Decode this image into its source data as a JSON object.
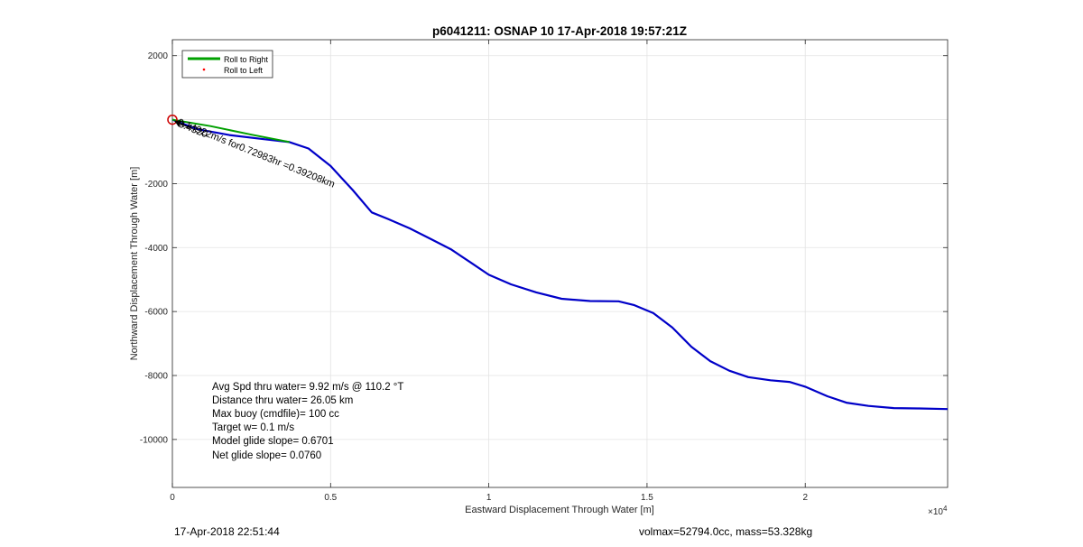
{
  "chart_data": {
    "type": "line",
    "title": "p6041211: OSNAP 10 17-Apr-2018 19:57:21Z",
    "xlabel": "Eastward Displacement Through Water [m]",
    "ylabel": "Northward Displacement Through Water [m]",
    "x_multiplier": "×10",
    "x_multiplier_exp": "4",
    "xlim": [
      0,
      24500
    ],
    "ylim": [
      -11500,
      2500
    ],
    "xticks": [
      0,
      5000,
      10000,
      15000,
      20000
    ],
    "xtick_labels": [
      "0",
      "0.5",
      "1",
      "1.5",
      "2"
    ],
    "yticks": [
      2000,
      -2000,
      -4000,
      -6000,
      -8000,
      -10000
    ],
    "ytick_labels": [
      "2000",
      "-2000",
      "-4000",
      "-6000",
      "-8000",
      "-10000"
    ],
    "grid": true,
    "legend_position": "top-left",
    "series": [
      {
        "name": "Roll to Right",
        "color": "#00a000",
        "x": [
          0,
          1200,
          2500,
          3700
        ],
        "y": [
          0,
          -200,
          -470,
          -700
        ]
      },
      {
        "name": "Roll to Left",
        "color": "#ff0000",
        "marker": "dot",
        "x": [],
        "y": []
      },
      {
        "name": "",
        "color": "#0000c8",
        "x": [
          0,
          800,
          1800,
          2800,
          3700,
          4300,
          5000,
          5700,
          6300,
          6800,
          7500,
          8200,
          8800,
          9400,
          10000,
          10700,
          11500,
          12300,
          13200,
          14100,
          14600,
          15200,
          15800,
          16400,
          17000,
          17600,
          18200,
          18900,
          19500,
          20000,
          20700,
          21300,
          22000,
          22800,
          23600,
          24500
        ],
        "y": [
          0,
          -300,
          -480,
          -600,
          -700,
          -900,
          -1450,
          -2200,
          -2900,
          -3100,
          -3400,
          -3750,
          -4050,
          -4450,
          -4850,
          -5150,
          -5400,
          -5600,
          -5670,
          -5680,
          -5800,
          -6050,
          -6500,
          -7100,
          -7550,
          -7850,
          -8050,
          -8150,
          -8200,
          -8350,
          -8650,
          -8850,
          -8950,
          -9020,
          -9030,
          -9050
        ]
      }
    ],
    "start_marker": {
      "x": 0,
      "y": 0,
      "color": "#cc0000"
    },
    "annotations": {
      "vector_label": "0.14922m/s for0.72983hr =0.39208km",
      "vector_extra_label": "3.4320"
    },
    "info_lines": [
      "Avg Spd thru water=  9.92 m/s @ 110.2 °T",
      "Distance thru water= 26.05 km",
      "Max buoy (cmdfile)= 100 cc",
      "Target w= 0.1 m/s",
      "Model glide slope= 0.6701",
      "Net glide slope= 0.0760"
    ]
  },
  "footer": {
    "left": "17-Apr-2018 22:51:44",
    "right": "volmax=52794.0cc, mass=53.328kg"
  }
}
